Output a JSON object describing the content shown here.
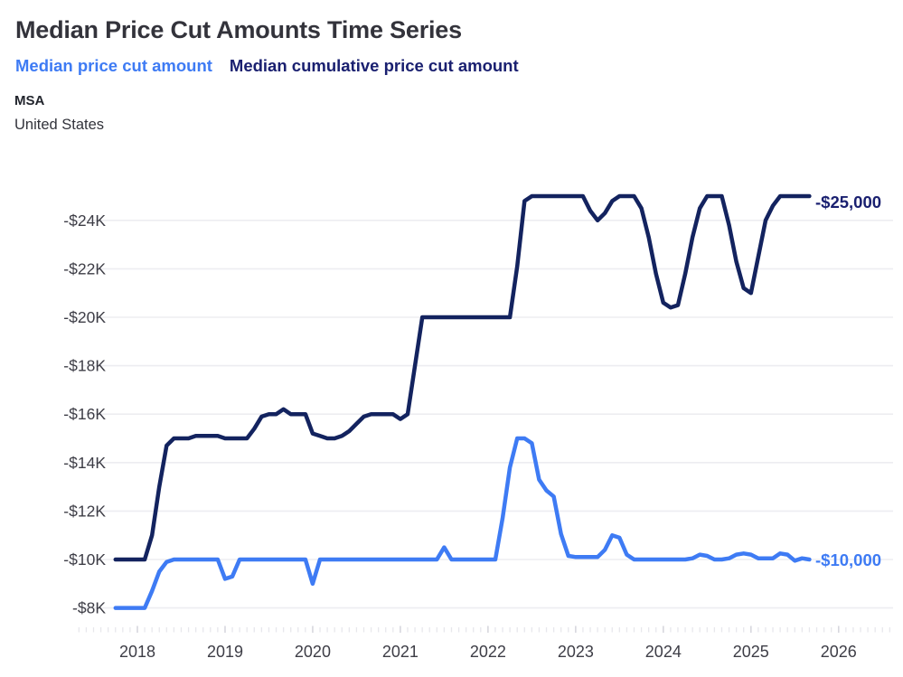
{
  "header": {
    "title": "Median Price Cut Amounts Time Series",
    "legend": [
      {
        "label": "Median price cut amount",
        "color": "#3e7bf4"
      },
      {
        "label": "Median cumulative price cut amount",
        "color": "#1a2070"
      }
    ],
    "filter_label": "MSA",
    "filter_value": "United States"
  },
  "colors": {
    "blue": "#3e7bf4",
    "navy": "#13235f",
    "navy_text": "#1a2070",
    "title": "#33333b",
    "grid": "#ededf1",
    "tick_major": "#d7d7de",
    "tick_minor": "#e7e7ec",
    "axis_text": "#3d3d46"
  },
  "chart_data": {
    "type": "line",
    "frequency": "monthly",
    "grid": true,
    "legend_position": "top-left",
    "months": [
      "2017-10",
      "2017-11",
      "2017-12",
      "2018-01",
      "2018-02",
      "2018-03",
      "2018-04",
      "2018-05",
      "2018-06",
      "2018-07",
      "2018-08",
      "2018-09",
      "2018-10",
      "2018-11",
      "2018-12",
      "2019-01",
      "2019-02",
      "2019-03",
      "2019-04",
      "2019-05",
      "2019-06",
      "2019-07",
      "2019-08",
      "2019-09",
      "2019-10",
      "2019-11",
      "2019-12",
      "2020-01",
      "2020-02",
      "2020-03",
      "2020-04",
      "2020-05",
      "2020-06",
      "2020-07",
      "2020-08",
      "2020-09",
      "2020-10",
      "2020-11",
      "2020-12",
      "2021-01",
      "2021-02",
      "2021-03",
      "2021-04",
      "2021-05",
      "2021-06",
      "2021-07",
      "2021-08",
      "2021-09",
      "2021-10",
      "2021-11",
      "2021-12",
      "2022-01",
      "2022-02",
      "2022-03",
      "2022-04",
      "2022-05",
      "2022-06",
      "2022-07",
      "2022-08",
      "2022-09",
      "2022-10",
      "2022-11",
      "2022-12",
      "2023-01",
      "2023-02",
      "2023-03",
      "2023-04",
      "2023-05",
      "2023-06",
      "2023-07",
      "2023-08",
      "2023-09",
      "2023-10",
      "2023-11",
      "2023-12",
      "2024-01",
      "2024-02",
      "2024-03",
      "2024-04",
      "2024-05",
      "2024-06",
      "2024-07",
      "2024-08",
      "2024-09",
      "2024-10",
      "2024-11",
      "2024-12",
      "2025-01",
      "2025-02",
      "2025-03",
      "2025-04",
      "2025-05",
      "2025-06",
      "2025-07",
      "2025-08",
      "2025-09"
    ],
    "series": [
      {
        "id": "median_price_cut",
        "name": "Median price cut amount",
        "color": "#3e7bf4",
        "label_color": "#3e7bf4",
        "end_label": "-$10,000",
        "values": [
          -8000,
          -8000,
          -8000,
          -8000,
          -8000,
          -8700,
          -9500,
          -9900,
          -10000,
          -10000,
          -10000,
          -10000,
          -10000,
          -10000,
          -10000,
          -9200,
          -9300,
          -10000,
          -10000,
          -10000,
          -10000,
          -10000,
          -10000,
          -10000,
          -10000,
          -10000,
          -10000,
          -9000,
          -10000,
          -10000,
          -10000,
          -10000,
          -10000,
          -10000,
          -10000,
          -10000,
          -10000,
          -10000,
          -10000,
          -10000,
          -10000,
          -10000,
          -10000,
          -10000,
          -10000,
          -10500,
          -10000,
          -10000,
          -10000,
          -10000,
          -10000,
          -10000,
          -10000,
          -11700,
          -13800,
          -15000,
          -15000,
          -14800,
          -13300,
          -12850,
          -12600,
          -11050,
          -10150,
          -10100,
          -10100,
          -10100,
          -10100,
          -10400,
          -11000,
          -10900,
          -10200,
          -10000,
          -10000,
          -10000,
          -10000,
          -10000,
          -10000,
          -10000,
          -10000,
          -10050,
          -10200,
          -10150,
          -10000,
          -10000,
          -10050,
          -10200,
          -10250,
          -10200,
          -10050,
          -10050,
          -10050,
          -10250,
          -10200,
          -9950,
          -10050,
          -10000
        ]
      },
      {
        "id": "median_cumulative_price_cut",
        "name": "Median cumulative price cut amount",
        "color": "#13235f",
        "label_color": "#1a2070",
        "end_label": "-$25,000",
        "values": [
          -10000,
          -10000,
          -10000,
          -10000,
          -10000,
          -11000,
          -13000,
          -14700,
          -15000,
          -15000,
          -15000,
          -15100,
          -15100,
          -15100,
          -15100,
          -15000,
          -15000,
          -15000,
          -15000,
          -15400,
          -15900,
          -16000,
          -16000,
          -16200,
          -16000,
          -16000,
          -16000,
          -15200,
          -15100,
          -15000,
          -15000,
          -15100,
          -15300,
          -15600,
          -15900,
          -16000,
          -16000,
          -16000,
          -16000,
          -15800,
          -16000,
          -18000,
          -20000,
          -20000,
          -20000,
          -20000,
          -20000,
          -20000,
          -20000,
          -20000,
          -20000,
          -20000,
          -20000,
          -20000,
          -20000,
          -22100,
          -24800,
          -25000,
          -25000,
          -25000,
          -25000,
          -25000,
          -25000,
          -25000,
          -25000,
          -24400,
          -24000,
          -24300,
          -24800,
          -25000,
          -25000,
          -25000,
          -24500,
          -23300,
          -21800,
          -20600,
          -20400,
          -20500,
          -21800,
          -23300,
          -24500,
          -25000,
          -25000,
          -25000,
          -23800,
          -22300,
          -21200,
          -21000,
          -22500,
          -24000,
          -24600,
          -25000,
          -25000,
          -25000,
          -25000,
          -25000
        ]
      }
    ],
    "y_axis": {
      "ticks": [
        {
          "label": "-$24K",
          "value": -24000
        },
        {
          "label": "-$22K",
          "value": -22000
        },
        {
          "label": "-$20K",
          "value": -20000
        },
        {
          "label": "-$18K",
          "value": -18000
        },
        {
          "label": "-$16K",
          "value": -16000
        },
        {
          "label": "-$14K",
          "value": -14000
        },
        {
          "label": "-$12K",
          "value": -12000
        },
        {
          "label": "-$10K",
          "value": -10000
        },
        {
          "label": "-$8K",
          "value": -8000
        }
      ]
    },
    "x_axis": {
      "ticks": [
        2018,
        2019,
        2020,
        2021,
        2022,
        2023,
        2024,
        2025,
        2026
      ]
    }
  }
}
